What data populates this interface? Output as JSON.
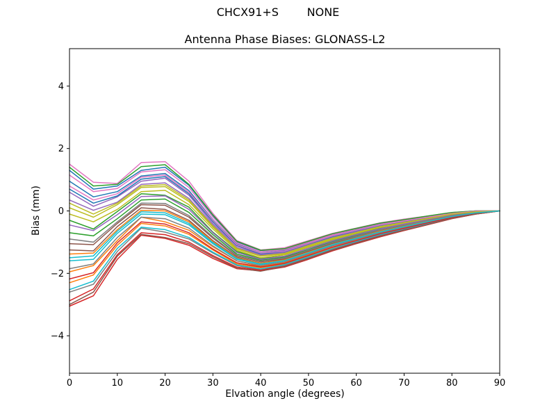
{
  "chart_data": {
    "type": "line",
    "suptitle": "CHCX91+S        NONE",
    "title": "Antenna Phase Biases: GLONASS-L2",
    "xlabel": "Elvation angle (degrees)",
    "ylabel": "Bias (mm)",
    "xlim": [
      0,
      90
    ],
    "ylim": [
      -5.2,
      5.2
    ],
    "xticks": [
      0,
      10,
      20,
      30,
      40,
      50,
      60,
      70,
      80,
      90
    ],
    "yticks": [
      -4,
      -2,
      0,
      2,
      4
    ],
    "grid": false,
    "legend": null,
    "line_width": 1.5,
    "color_cycle": [
      "#1f77b4",
      "#ff7f0e",
      "#2ca02c",
      "#d62728",
      "#9467bd",
      "#8c564b",
      "#e377c2",
      "#7f7f7f",
      "#bcbd22",
      "#17becf"
    ],
    "x": [
      0,
      5,
      10,
      15,
      20,
      25,
      30,
      35,
      40,
      45,
      50,
      55,
      60,
      65,
      70,
      75,
      80,
      85,
      90
    ],
    "series": [
      [
        1.3,
        0.7,
        0.8,
        1.3,
        1.4,
        0.82,
        -0.15,
        -1.0,
        -1.28,
        -1.22,
        -0.98,
        -0.75,
        -0.57,
        -0.4,
        -0.29,
        -0.17,
        -0.06,
        0.0,
        0.0
      ],
      [
        -1.95,
        -1.75,
        -0.95,
        -0.2,
        -0.35,
        -0.62,
        -1.15,
        -1.6,
        -1.78,
        -1.66,
        -1.4,
        -1.12,
        -0.92,
        -0.7,
        -0.54,
        -0.37,
        -0.2,
        -0.07,
        0.0
      ],
      [
        -0.3,
        -0.58,
        -0.02,
        0.55,
        0.5,
        0.12,
        -0.68,
        -1.3,
        -1.52,
        -1.45,
        -1.2,
        -0.95,
        -0.75,
        -0.55,
        -0.41,
        -0.27,
        -0.13,
        -0.04,
        0.0
      ],
      [
        -3.05,
        -2.72,
        -1.55,
        -0.78,
        -0.88,
        -1.1,
        -1.52,
        -1.85,
        -1.92,
        -1.8,
        -1.55,
        -1.28,
        -1.05,
        -0.83,
        -0.63,
        -0.44,
        -0.25,
        -0.1,
        0.0
      ],
      [
        0.6,
        0.15,
        0.45,
        0.95,
        1.05,
        0.5,
        -0.4,
        -1.12,
        -1.4,
        -1.32,
        -1.07,
        -0.83,
        -0.65,
        -0.47,
        -0.34,
        -0.22,
        -0.09,
        -0.02,
        0.0
      ],
      [
        -1.25,
        -1.28,
        -0.5,
        0.1,
        0.05,
        -0.3,
        -0.95,
        -1.48,
        -1.67,
        -1.55,
        -1.3,
        -1.05,
        -0.85,
        -0.64,
        -0.49,
        -0.33,
        -0.17,
        -0.06,
        0.0
      ],
      [
        1.5,
        0.92,
        0.88,
        1.55,
        1.58,
        0.95,
        -0.08,
        -0.95,
        -1.25,
        -1.18,
        -0.95,
        -0.72,
        -0.55,
        -0.38,
        -0.26,
        -0.16,
        -0.05,
        0.0,
        0.0
      ],
      [
        -2.6,
        -2.35,
        -1.3,
        -0.55,
        -0.68,
        -0.9,
        -1.35,
        -1.75,
        -1.88,
        -1.74,
        -1.5,
        -1.22,
        -1.0,
        -0.78,
        -0.6,
        -0.41,
        -0.23,
        -0.09,
        0.0
      ],
      [
        0.1,
        -0.2,
        0.2,
        0.75,
        0.78,
        0.3,
        -0.52,
        -1.22,
        -1.45,
        -1.38,
        -1.13,
        -0.89,
        -0.7,
        -0.51,
        -0.38,
        -0.24,
        -0.11,
        -0.03,
        0.0
      ],
      [
        -1.6,
        -1.55,
        -0.72,
        -0.1,
        -0.12,
        -0.45,
        -1.05,
        -1.55,
        -1.72,
        -1.6,
        -1.35,
        -1.1,
        -0.88,
        -0.68,
        -0.51,
        -0.35,
        -0.19,
        -0.07,
        0.0
      ],
      [
        0.95,
        0.45,
        0.62,
        1.12,
        1.2,
        0.65,
        -0.28,
        -1.06,
        -1.34,
        -1.27,
        -1.02,
        -0.79,
        -0.61,
        -0.44,
        -0.31,
        -0.19,
        -0.08,
        -0.01,
        0.0
      ],
      [
        -2.3,
        -2.05,
        -1.1,
        -0.4,
        -0.48,
        -0.75,
        -1.25,
        -1.7,
        -1.82,
        -1.7,
        -1.44,
        -1.18,
        -0.96,
        -0.74,
        -0.57,
        -0.39,
        -0.21,
        -0.08,
        0.0
      ],
      [
        -0.7,
        -0.8,
        -0.25,
        0.35,
        0.38,
        -0.05,
        -0.76,
        -1.38,
        -1.58,
        -1.48,
        -1.24,
        -0.98,
        -0.79,
        -0.59,
        -0.44,
        -0.29,
        -0.15,
        -0.05,
        0.0
      ],
      [
        -2.88,
        -2.5,
        -1.4,
        -0.7,
        -0.76,
        -1.0,
        -1.43,
        -1.8,
        -1.9,
        -1.77,
        -1.52,
        -1.25,
        -1.02,
        -0.8,
        -0.61,
        -0.43,
        -0.24,
        -0.1,
        0.0
      ],
      [
        0.35,
        0.02,
        0.28,
        0.85,
        0.9,
        0.4,
        -0.45,
        -1.17,
        -1.42,
        -1.35,
        -1.1,
        -0.86,
        -0.67,
        -0.49,
        -0.36,
        -0.23,
        -0.1,
        -0.02,
        0.0
      ],
      [
        -1.05,
        -1.08,
        -0.4,
        0.2,
        0.18,
        -0.2,
        -0.87,
        -1.44,
        -1.63,
        -1.53,
        -1.28,
        -1.03,
        -0.82,
        -0.62,
        -0.47,
        -0.31,
        -0.16,
        -0.05,
        0.0
      ],
      [
        1.15,
        0.62,
        0.72,
        1.25,
        1.32,
        0.75,
        -0.2,
        -1.02,
        -1.3,
        -1.24,
        -1.0,
        -0.76,
        -0.58,
        -0.41,
        -0.3,
        -0.18,
        -0.07,
        0.0,
        0.0
      ],
      [
        -1.85,
        -1.7,
        -0.85,
        -0.2,
        -0.25,
        -0.55,
        -1.12,
        -1.6,
        -1.75,
        -1.63,
        -1.38,
        -1.12,
        -0.91,
        -0.7,
        -0.53,
        -0.36,
        -0.2,
        -0.07,
        0.0
      ],
      [
        -0.1,
        -0.35,
        0.05,
        0.62,
        0.66,
        0.2,
        -0.58,
        -1.26,
        -1.5,
        -1.41,
        -1.16,
        -0.92,
        -0.72,
        -0.53,
        -0.4,
        -0.26,
        -0.12,
        -0.04,
        0.0
      ],
      [
        -2.52,
        -2.25,
        -1.2,
        -0.52,
        -0.6,
        -0.85,
        -1.32,
        -1.73,
        -1.86,
        -1.72,
        -1.47,
        -1.21,
        -0.98,
        -0.76,
        -0.58,
        -0.4,
        -0.22,
        -0.08,
        0.0
      ],
      [
        0.7,
        0.25,
        0.48,
        1.02,
        1.1,
        0.55,
        -0.34,
        -1.1,
        -1.37,
        -1.3,
        -1.05,
        -0.82,
        -0.63,
        -0.46,
        -0.33,
        -0.21,
        -0.09,
        -0.02,
        0.0
      ],
      [
        -1.38,
        -1.35,
        -0.6,
        0.02,
        0.0,
        -0.35,
        -0.98,
        -1.51,
        -1.68,
        -1.57,
        -1.32,
        -1.07,
        -0.86,
        -0.65,
        -0.49,
        -0.33,
        -0.17,
        -0.06,
        0.0
      ],
      [
        1.4,
        0.8,
        0.85,
        1.42,
        1.48,
        0.85,
        -0.13,
        -0.97,
        -1.26,
        -1.21,
        -0.97,
        -0.73,
        -0.56,
        -0.39,
        -0.28,
        -0.16,
        -0.05,
        0.0,
        0.0
      ],
      [
        -2.18,
        -1.98,
        -1.02,
        -0.35,
        -0.42,
        -0.7,
        -1.22,
        -1.66,
        -1.8,
        -1.68,
        -1.43,
        -1.16,
        -0.95,
        -0.73,
        -0.56,
        -0.38,
        -0.21,
        -0.08,
        0.0
      ],
      [
        -0.45,
        -0.63,
        -0.12,
        0.46,
        0.48,
        0.05,
        -0.7,
        -1.33,
        -1.55,
        -1.45,
        -1.2,
        -0.96,
        -0.76,
        -0.57,
        -0.42,
        -0.28,
        -0.14,
        -0.04,
        0.0
      ],
      [
        -3.0,
        -2.6,
        -1.45,
        -0.75,
        -0.85,
        -1.05,
        -1.47,
        -1.83,
        -1.93,
        -1.78,
        -1.53,
        -1.26,
        -1.04,
        -0.81,
        -0.62,
        -0.43,
        -0.24,
        -0.1,
        0.0
      ],
      [
        0.8,
        0.35,
        0.55,
        1.08,
        1.15,
        0.6,
        -0.3,
        -1.08,
        -1.35,
        -1.29,
        -1.04,
        -0.8,
        -0.62,
        -0.45,
        -0.32,
        -0.2,
        -0.08,
        -0.01,
        0.0
      ],
      [
        -0.9,
        -1.0,
        -0.35,
        0.25,
        0.24,
        -0.15,
        -0.83,
        -1.42,
        -1.61,
        -1.51,
        -1.26,
        -1.01,
        -0.81,
        -0.61,
        -0.45,
        -0.3,
        -0.15,
        -0.05,
        0.0
      ],
      [
        0.25,
        -0.1,
        0.25,
        0.8,
        0.84,
        0.35,
        -0.48,
        -1.2,
        -1.44,
        -1.36,
        -1.11,
        -0.87,
        -0.69,
        -0.5,
        -0.37,
        -0.24,
        -0.1,
        -0.03,
        0.0
      ],
      [
        -1.5,
        -1.44,
        -0.65,
        -0.03,
        -0.06,
        -0.4,
        -1.01,
        -1.53,
        -1.7,
        -1.59,
        -1.34,
        -1.08,
        -0.87,
        -0.67,
        -0.5,
        -0.34,
        -0.18,
        -0.06,
        0.0
      ]
    ]
  }
}
